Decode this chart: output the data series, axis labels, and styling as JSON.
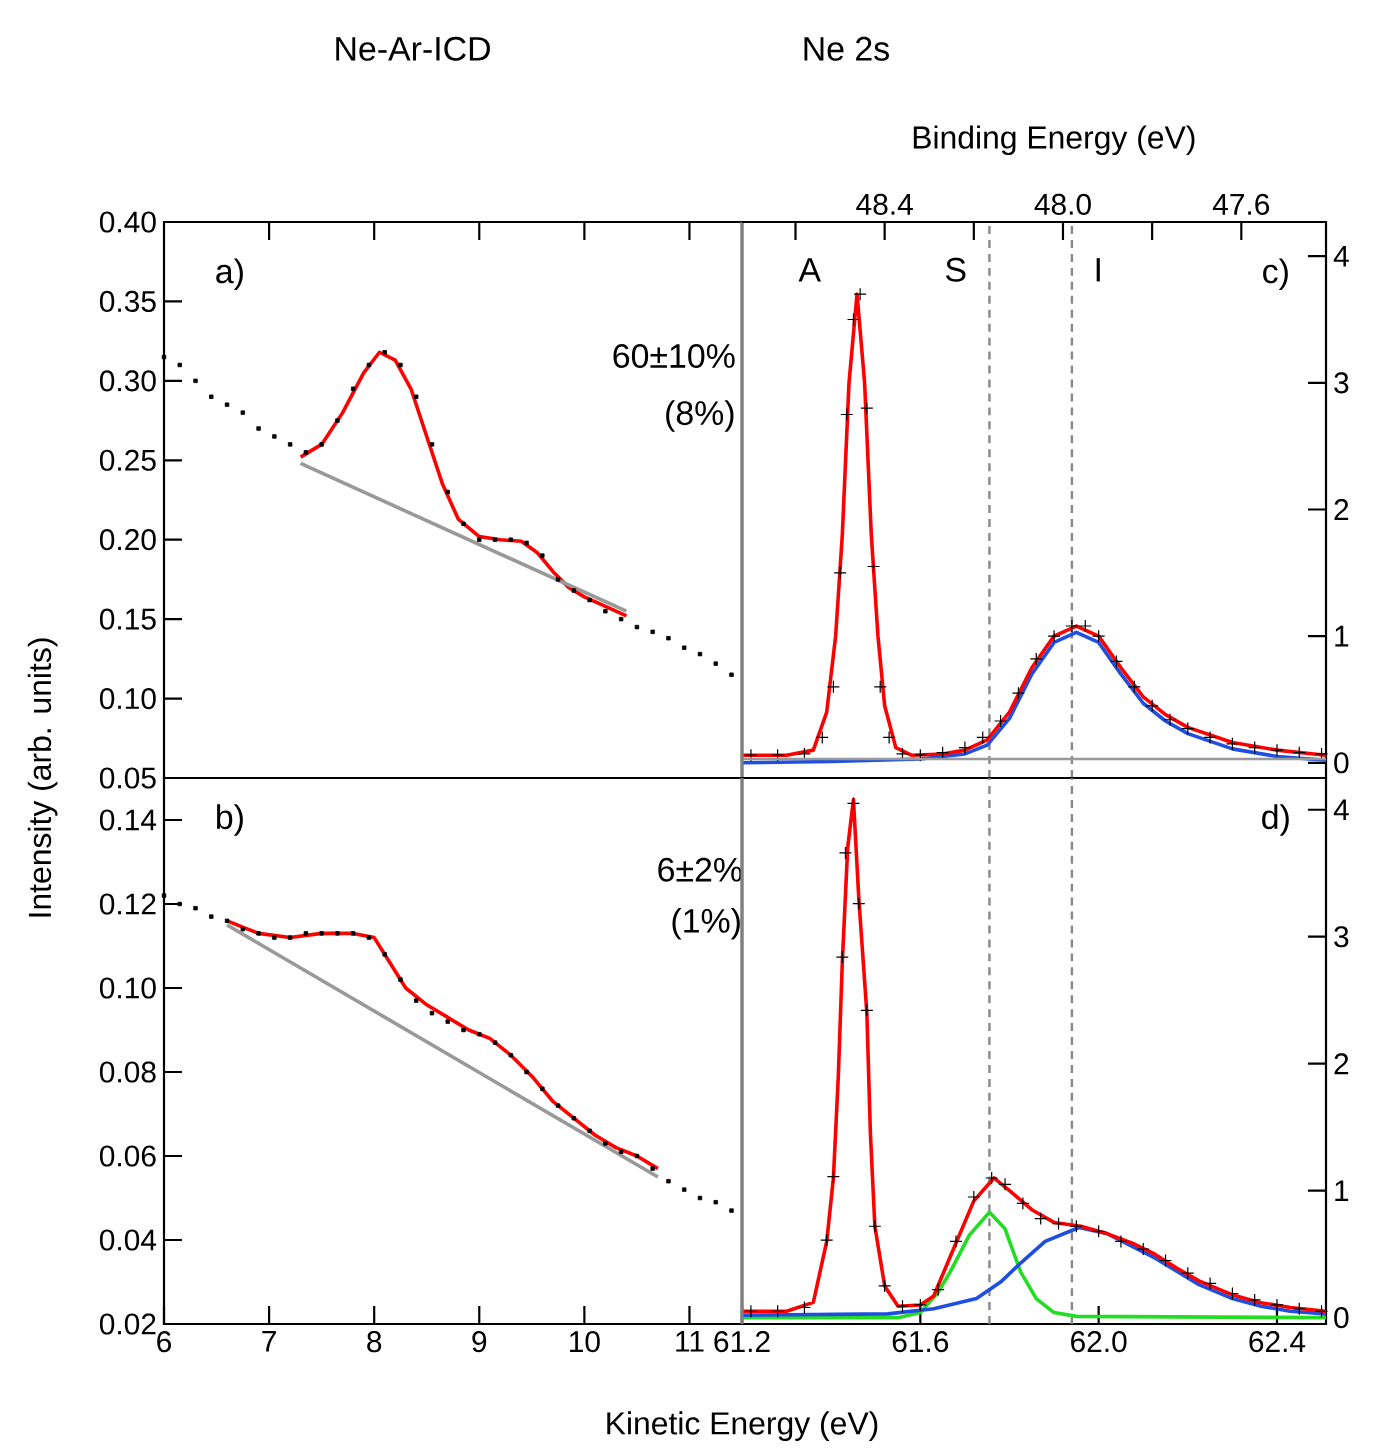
{
  "chart_data": [
    {
      "type": "scatter",
      "title": "Ne-Ar-ICD",
      "ylabel": "Intensity (arb. units)",
      "xlim": [
        6,
        11.5
      ],
      "xticks": [
        {
          "value": 7,
          "label": null
        },
        {
          "value": 8,
          "label": null
        },
        {
          "value": 9,
          "label": null
        },
        {
          "value": 10,
          "label": null
        },
        {
          "value": 11,
          "label": null
        }
      ],
      "ylim": [
        0.05,
        0.4
      ],
      "yticks": [
        0.05,
        {
          "value": 0.1,
          "label": "0.10"
        },
        0.15,
        {
          "value": 0.2,
          "label": "0.20"
        },
        0.25,
        {
          "value": 0.3,
          "label": "0.30"
        },
        0.35,
        {
          "value": 0.4,
          "label": "0.40"
        }
      ],
      "tick_labels": "y",
      "annotations": [
        "a)",
        "60±10%",
        "(8%)"
      ],
      "series": [
        {
          "type": "scatter",
          "marker": "square",
          "color": "#000000",
          "x": [
            6.0,
            6.15,
            6.3,
            6.45,
            6.6,
            6.75,
            6.9,
            7.05,
            7.2,
            7.35,
            7.5,
            7.65,
            7.8,
            7.95,
            8.1,
            8.25,
            8.4,
            8.55,
            8.7,
            8.85,
            9.0,
            9.15,
            9.3,
            9.45,
            9.6,
            9.75,
            9.9,
            10.05,
            10.2,
            10.35,
            10.5,
            10.65,
            10.8,
            10.95,
            11.1,
            11.25,
            11.4
          ],
          "values": [
            0.315,
            0.31,
            0.3,
            0.29,
            0.285,
            0.28,
            0.27,
            0.265,
            0.26,
            0.255,
            0.26,
            0.275,
            0.295,
            0.31,
            0.318,
            0.31,
            0.29,
            0.26,
            0.23,
            0.21,
            0.2,
            0.2,
            0.2,
            0.198,
            0.19,
            0.175,
            0.168,
            0.162,
            0.155,
            0.15,
            0.145,
            0.142,
            0.138,
            0.132,
            0.128,
            0.122,
            0.115
          ]
        },
        {
          "type": "line",
          "color": "#ff0000",
          "x": [
            7.3,
            7.5,
            7.7,
            7.9,
            8.05,
            8.2,
            8.35,
            8.5,
            8.65,
            8.8,
            9.0,
            9.2,
            9.4,
            9.55,
            9.7,
            9.85,
            10.0,
            10.2,
            10.4
          ],
          "values": [
            0.252,
            0.26,
            0.28,
            0.305,
            0.318,
            0.313,
            0.295,
            0.265,
            0.235,
            0.213,
            0.202,
            0.2,
            0.199,
            0.192,
            0.18,
            0.17,
            0.164,
            0.158,
            0.152
          ]
        },
        {
          "type": "line",
          "color": "#999999",
          "x": [
            7.3,
            10.4
          ],
          "values": [
            0.248,
            0.155
          ]
        }
      ]
    },
    {
      "type": "scatter",
      "xlabel": "Kinetic Energy (eV)",
      "xlim": [
        6,
        11.5
      ],
      "xticks": [
        6,
        7,
        8,
        9,
        10,
        11
      ],
      "ylim": [
        0.02,
        0.15
      ],
      "yticks": [
        0.02,
        0.04,
        0.06,
        0.08,
        {
          "value": 0.1,
          "label": "0.10"
        },
        0.12,
        0.14
      ],
      "annotations": [
        "b)",
        "6±2%",
        "(1%)"
      ],
      "series": [
        {
          "type": "scatter",
          "marker": "square",
          "color": "#000000",
          "x": [
            6.0,
            6.15,
            6.3,
            6.45,
            6.6,
            6.75,
            6.9,
            7.05,
            7.2,
            7.35,
            7.5,
            7.65,
            7.8,
            7.95,
            8.1,
            8.25,
            8.4,
            8.55,
            8.7,
            8.85,
            9.0,
            9.15,
            9.3,
            9.45,
            9.6,
            9.75,
            9.9,
            10.05,
            10.2,
            10.35,
            10.5,
            10.65,
            10.8,
            10.95,
            11.1,
            11.25,
            11.4
          ],
          "values": [
            0.122,
            0.12,
            0.119,
            0.117,
            0.116,
            0.114,
            0.113,
            0.112,
            0.112,
            0.113,
            0.113,
            0.113,
            0.113,
            0.112,
            0.108,
            0.102,
            0.097,
            0.094,
            0.092,
            0.09,
            0.089,
            0.087,
            0.084,
            0.08,
            0.076,
            0.072,
            0.069,
            0.066,
            0.063,
            0.061,
            0.06,
            0.057,
            0.054,
            0.052,
            0.05,
            0.049,
            0.047
          ]
        },
        {
          "type": "line",
          "color": "#ff0000",
          "x": [
            6.6,
            6.9,
            7.2,
            7.5,
            7.8,
            8.0,
            8.15,
            8.3,
            8.5,
            8.7,
            8.9,
            9.1,
            9.3,
            9.5,
            9.7,
            9.9,
            10.1,
            10.3,
            10.5,
            10.7
          ],
          "values": [
            0.116,
            0.113,
            0.112,
            0.113,
            0.113,
            0.112,
            0.106,
            0.1,
            0.096,
            0.093,
            0.09,
            0.088,
            0.084,
            0.079,
            0.073,
            0.069,
            0.065,
            0.062,
            0.06,
            0.057
          ]
        },
        {
          "type": "line",
          "color": "#999999",
          "x": [
            6.6,
            10.7
          ],
          "values": [
            0.115,
            0.055
          ]
        }
      ]
    },
    {
      "type": "scatter",
      "title": "Ne 2s",
      "x2label": "Binding Energy (eV)",
      "xlim": [
        61.2,
        62.51
      ],
      "x2lim": [
        48.72,
        47.41
      ],
      "x2ticks": [
        {
          "value": 48.6,
          "label": null
        },
        48.4,
        {
          "value": 48.2,
          "label": null
        },
        {
          "value": 48.0,
          "label": "48.0"
        },
        {
          "value": 47.8,
          "label": null
        },
        47.6
      ],
      "ylim": [
        -0.12,
        4.27
      ],
      "yticks": [
        0,
        1,
        2,
        3,
        4
      ],
      "tick_labels": "y",
      "annotations": [
        "c)",
        "A",
        "S",
        "I"
      ],
      "ref_lines": [
        {
          "axis": "y",
          "value": 0.03,
          "color": "#999999"
        },
        {
          "axis": "x",
          "value": 61.755,
          "color": "#888888",
          "line_style": "dashed"
        },
        {
          "axis": "x",
          "value": 61.94,
          "color": "#888888",
          "line_style": "dashed"
        }
      ],
      "series": [
        {
          "type": "line",
          "color": "#1f4fe0",
          "x": [
            61.2,
            61.4,
            61.6,
            61.7,
            61.75,
            61.8,
            61.85,
            61.9,
            61.95,
            62.0,
            62.05,
            62.1,
            62.15,
            62.2,
            62.3,
            62.4,
            62.51
          ],
          "values": [
            0.0,
            0.01,
            0.03,
            0.07,
            0.14,
            0.35,
            0.7,
            0.95,
            1.03,
            0.95,
            0.7,
            0.47,
            0.33,
            0.23,
            0.11,
            0.05,
            0.02
          ]
        },
        {
          "type": "line",
          "color": "#ff0000",
          "x": [
            61.2,
            61.3,
            61.36,
            61.39,
            61.41,
            61.425,
            61.44,
            61.458,
            61.475,
            61.49,
            61.505,
            61.52,
            61.545,
            61.58,
            61.65,
            61.7,
            61.75,
            61.8,
            61.85,
            61.9,
            61.95,
            62.0,
            62.05,
            62.1,
            62.15,
            62.2,
            62.3,
            62.4,
            62.51
          ],
          "values": [
            0.06,
            0.06,
            0.1,
            0.4,
            1.0,
            1.8,
            3.0,
            3.7,
            3.0,
            1.8,
            1.0,
            0.45,
            0.12,
            0.06,
            0.07,
            0.1,
            0.18,
            0.4,
            0.75,
            1.0,
            1.08,
            1.0,
            0.75,
            0.52,
            0.38,
            0.28,
            0.16,
            0.1,
            0.06
          ]
        },
        {
          "type": "scatter",
          "marker": "cross",
          "color": "#000000",
          "x": [
            61.22,
            61.28,
            61.34,
            61.38,
            61.405,
            61.42,
            61.435,
            61.45,
            61.465,
            61.48,
            61.495,
            61.51,
            61.53,
            61.56,
            61.6,
            61.65,
            61.7,
            61.74,
            61.78,
            61.82,
            61.86,
            61.9,
            61.94,
            61.97,
            62.0,
            62.04,
            62.08,
            62.12,
            62.16,
            62.2,
            62.25,
            62.3,
            62.35,
            62.4,
            62.45,
            62.5
          ],
          "values": [
            0.06,
            0.06,
            0.07,
            0.2,
            0.6,
            1.5,
            2.75,
            3.5,
            3.7,
            2.8,
            1.55,
            0.6,
            0.2,
            0.07,
            0.06,
            0.08,
            0.12,
            0.2,
            0.33,
            0.55,
            0.82,
            1.0,
            1.08,
            1.08,
            1.0,
            0.8,
            0.6,
            0.45,
            0.34,
            0.27,
            0.2,
            0.15,
            0.12,
            0.1,
            0.08,
            0.07
          ]
        }
      ]
    },
    {
      "type": "scatter",
      "xlim": [
        61.2,
        62.51
      ],
      "xticks": [
        61.2,
        61.6,
        {
          "value": 62.0,
          "label": "62.0"
        },
        62.4
      ],
      "ylim": [
        -0.05,
        4.25
      ],
      "yticks": [
        0,
        1,
        2,
        3,
        4
      ],
      "annotations": [
        "d)"
      ],
      "ref_lines": [
        {
          "axis": "x",
          "value": 61.755,
          "color": "#888888",
          "line_style": "dashed"
        },
        {
          "axis": "x",
          "value": 61.94,
          "color": "#888888",
          "line_style": "dashed"
        }
      ],
      "series": [
        {
          "type": "line",
          "color": "#22dd22",
          "x": [
            61.2,
            61.55,
            61.6,
            61.64,
            61.667,
            61.71,
            61.755,
            61.79,
            61.825,
            61.86,
            61.9,
            61.95,
            62.51
          ],
          "values": [
            0.0,
            0.0,
            0.04,
            0.2,
            0.36,
            0.65,
            0.83,
            0.7,
            0.36,
            0.15,
            0.04,
            0.01,
            0.0
          ]
        },
        {
          "type": "line",
          "color": "#1f4fe0",
          "x": [
            61.2,
            61.527,
            61.63,
            61.726,
            61.78,
            61.825,
            61.88,
            61.956,
            62.02,
            62.126,
            62.225,
            62.3,
            62.364,
            62.43,
            62.51
          ],
          "values": [
            0.02,
            0.03,
            0.07,
            0.15,
            0.28,
            0.43,
            0.6,
            0.71,
            0.66,
            0.47,
            0.26,
            0.15,
            0.09,
            0.05,
            0.03
          ]
        },
        {
          "type": "line",
          "color": "#ff0000",
          "x": [
            61.2,
            61.3,
            61.36,
            61.39,
            61.405,
            61.416,
            61.425,
            61.437,
            61.45,
            61.462,
            61.48,
            61.488,
            61.498,
            61.52,
            61.55,
            61.6,
            61.63,
            61.667,
            61.72,
            61.765,
            61.8,
            61.85,
            61.9,
            61.96,
            62.02,
            62.08,
            62.126,
            62.175,
            62.225,
            62.3,
            62.36,
            62.43,
            62.51
          ],
          "values": [
            0.05,
            0.05,
            0.12,
            0.6,
            1.1,
            1.9,
            2.8,
            3.7,
            4.08,
            3.3,
            2.4,
            1.45,
            0.72,
            0.25,
            0.09,
            0.1,
            0.17,
            0.48,
            0.92,
            1.1,
            1.0,
            0.85,
            0.75,
            0.72,
            0.66,
            0.58,
            0.5,
            0.39,
            0.29,
            0.18,
            0.12,
            0.08,
            0.05
          ]
        },
        {
          "type": "scatter",
          "marker": "cross",
          "color": "#000000",
          "x": [
            61.22,
            61.28,
            61.34,
            61.39,
            61.405,
            61.425,
            61.432,
            61.45,
            61.462,
            61.48,
            61.498,
            61.52,
            61.56,
            61.6,
            61.64,
            61.68,
            61.72,
            61.76,
            61.79,
            61.83,
            61.87,
            61.91,
            61.95,
            62.0,
            62.05,
            62.1,
            62.15,
            62.2,
            62.25,
            62.3,
            62.35,
            62.4,
            62.45,
            62.5
          ],
          "values": [
            0.05,
            0.05,
            0.08,
            0.61,
            1.11,
            2.84,
            3.66,
            4.05,
            3.26,
            2.42,
            0.72,
            0.25,
            0.09,
            0.1,
            0.22,
            0.6,
            0.95,
            1.1,
            1.05,
            0.9,
            0.78,
            0.74,
            0.72,
            0.68,
            0.6,
            0.54,
            0.45,
            0.35,
            0.27,
            0.19,
            0.14,
            0.1,
            0.07,
            0.05
          ]
        }
      ]
    }
  ]
}
